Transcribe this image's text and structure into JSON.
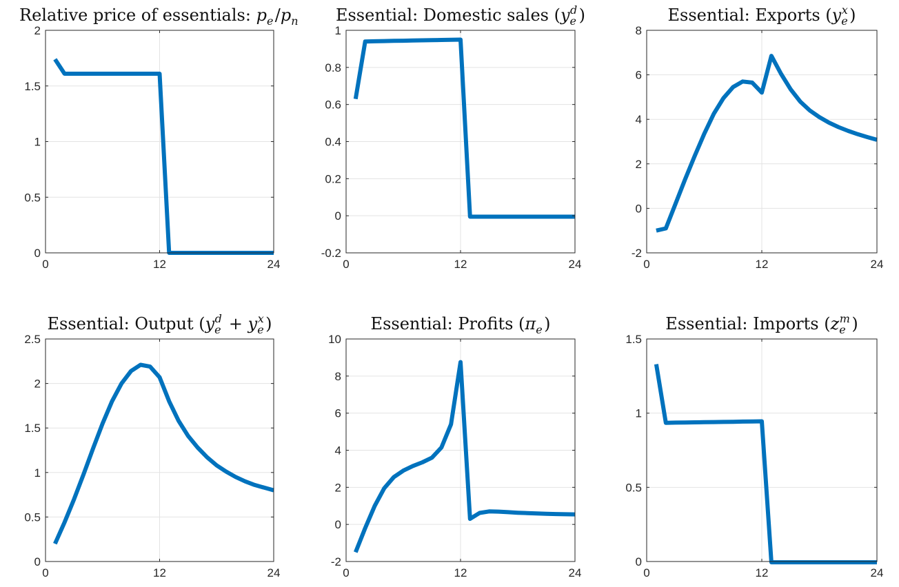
{
  "figure": {
    "line_color": "#0072BD"
  },
  "chart_data": [
    {
      "type": "line",
      "title": "Relative price of essentials: ",
      "title_math": "p_e/p_n",
      "xlabel": "",
      "ylabel": "",
      "xlim": [
        0,
        24
      ],
      "ylim": [
        0,
        2
      ],
      "xticks": [
        0,
        12,
        24
      ],
      "yticks": [
        0,
        0.5,
        1,
        1.5,
        2
      ],
      "ytick_labels": [
        "0",
        "0.5",
        "1",
        "1.5",
        "2"
      ],
      "grid": true,
      "x": [
        1,
        2,
        3,
        4,
        5,
        6,
        7,
        8,
        9,
        10,
        11,
        12,
        13,
        14,
        15,
        16,
        17,
        18,
        19,
        20,
        21,
        22,
        23,
        24
      ],
      "series": [
        {
          "values": [
            1.74,
            1.61,
            1.61,
            1.61,
            1.61,
            1.61,
            1.61,
            1.61,
            1.61,
            1.61,
            1.61,
            1.61,
            0,
            0,
            0,
            0,
            0,
            0,
            0,
            0,
            0,
            0,
            0,
            0
          ]
        }
      ]
    },
    {
      "type": "line",
      "title": "Essential: Domestic sales ",
      "title_math": "(y_e^d)",
      "xlabel": "",
      "ylabel": "",
      "xlim": [
        0,
        24
      ],
      "ylim": [
        -0.2,
        1
      ],
      "xticks": [
        0,
        12,
        24
      ],
      "yticks": [
        -0.2,
        0,
        0.2,
        0.4,
        0.6,
        0.8,
        1
      ],
      "ytick_labels": [
        "-0.2",
        "0",
        "0.2",
        "0.4",
        "0.6",
        "0.8",
        "1"
      ],
      "grid": true,
      "x": [
        1,
        2,
        3,
        4,
        5,
        6,
        7,
        8,
        9,
        10,
        11,
        12,
        13,
        14,
        15,
        16,
        17,
        18,
        19,
        20,
        21,
        22,
        23,
        24
      ],
      "series": [
        {
          "values": [
            0.63,
            0.94,
            0.941,
            0.942,
            0.943,
            0.944,
            0.945,
            0.946,
            0.947,
            0.948,
            0.949,
            0.95,
            -0.005,
            -0.005,
            -0.005,
            -0.005,
            -0.005,
            -0.005,
            -0.005,
            -0.005,
            -0.005,
            -0.005,
            -0.005,
            -0.005
          ]
        }
      ]
    },
    {
      "type": "line",
      "title": "Essential: Exports ",
      "title_math": "(y_e^x)",
      "xlabel": "",
      "ylabel": "",
      "xlim": [
        0,
        24
      ],
      "ylim": [
        -2,
        8
      ],
      "xticks": [
        0,
        12,
        24
      ],
      "yticks": [
        -2,
        0,
        2,
        4,
        6,
        8
      ],
      "ytick_labels": [
        "-2",
        "0",
        "2",
        "4",
        "6",
        "8"
      ],
      "grid": true,
      "x": [
        1,
        2,
        3,
        4,
        5,
        6,
        7,
        8,
        9,
        10,
        11,
        12,
        13,
        14,
        15,
        16,
        17,
        18,
        19,
        20,
        21,
        22,
        23,
        24
      ],
      "series": [
        {
          "values": [
            -1.0,
            -0.9,
            0.2,
            1.3,
            2.35,
            3.35,
            4.25,
            4.95,
            5.45,
            5.7,
            5.65,
            5.2,
            6.85,
            6.05,
            5.35,
            4.8,
            4.4,
            4.1,
            3.85,
            3.65,
            3.48,
            3.33,
            3.2,
            3.08
          ]
        }
      ]
    },
    {
      "type": "line",
      "title": "Essential: Output ",
      "title_math": "(y_e^d + y_e^x)",
      "xlabel": "",
      "ylabel": "",
      "xlim": [
        0,
        24
      ],
      "ylim": [
        0,
        2.5
      ],
      "xticks": [
        0,
        12,
        24
      ],
      "yticks": [
        0,
        0.5,
        1,
        1.5,
        2,
        2.5
      ],
      "ytick_labels": [
        "0",
        "0.5",
        "1",
        "1.5",
        "2",
        "2.5"
      ],
      "grid": true,
      "x": [
        1,
        2,
        3,
        4,
        5,
        6,
        7,
        8,
        9,
        10,
        11,
        12,
        13,
        14,
        15,
        16,
        17,
        18,
        19,
        20,
        21,
        22,
        23,
        24
      ],
      "series": [
        {
          "values": [
            0.2,
            0.44,
            0.7,
            0.98,
            1.27,
            1.55,
            1.8,
            2.0,
            2.14,
            2.21,
            2.19,
            2.07,
            1.8,
            1.58,
            1.41,
            1.28,
            1.17,
            1.08,
            1.01,
            0.95,
            0.9,
            0.86,
            0.83,
            0.8
          ]
        }
      ]
    },
    {
      "type": "line",
      "title": "Essential: Profits ",
      "title_math": "(π_e)",
      "xlabel": "",
      "ylabel": "",
      "xlim": [
        0,
        24
      ],
      "ylim": [
        -2,
        10
      ],
      "xticks": [
        0,
        12,
        24
      ],
      "yticks": [
        -2,
        0,
        2,
        4,
        6,
        8,
        10
      ],
      "ytick_labels": [
        "-2",
        "0",
        "2",
        "4",
        "6",
        "8",
        "10"
      ],
      "grid": true,
      "x": [
        1,
        2,
        3,
        4,
        5,
        6,
        7,
        8,
        9,
        10,
        11,
        12,
        13,
        14,
        15,
        16,
        17,
        18,
        19,
        20,
        21,
        22,
        23,
        24
      ],
      "series": [
        {
          "values": [
            -1.5,
            -0.2,
            1.0,
            1.95,
            2.55,
            2.9,
            3.15,
            3.35,
            3.6,
            4.15,
            5.4,
            8.75,
            0.3,
            0.62,
            0.7,
            0.69,
            0.66,
            0.63,
            0.61,
            0.59,
            0.57,
            0.56,
            0.55,
            0.54
          ]
        }
      ]
    },
    {
      "type": "line",
      "title": "Essential: Imports ",
      "title_math": "(z_e^m)",
      "xlabel": "",
      "ylabel": "",
      "xlim": [
        0,
        24
      ],
      "ylim": [
        0,
        1.5
      ],
      "xticks": [
        0,
        12,
        24
      ],
      "yticks": [
        0,
        0.5,
        1,
        1.5
      ],
      "ytick_labels": [
        "0",
        "0.5",
        "1",
        "1.5"
      ],
      "grid": true,
      "x": [
        1,
        2,
        3,
        4,
        5,
        6,
        7,
        8,
        9,
        10,
        11,
        12,
        13,
        14,
        15,
        16,
        17,
        18,
        19,
        20,
        21,
        22,
        23,
        24
      ],
      "series": [
        {
          "values": [
            1.33,
            0.935,
            0.936,
            0.937,
            0.938,
            0.939,
            0.94,
            0.941,
            0.942,
            0.943,
            0.944,
            0.945,
            -0.005,
            -0.005,
            -0.005,
            -0.005,
            -0.005,
            -0.005,
            -0.005,
            -0.005,
            -0.005,
            -0.005,
            -0.005,
            -0.005
          ]
        }
      ]
    }
  ]
}
